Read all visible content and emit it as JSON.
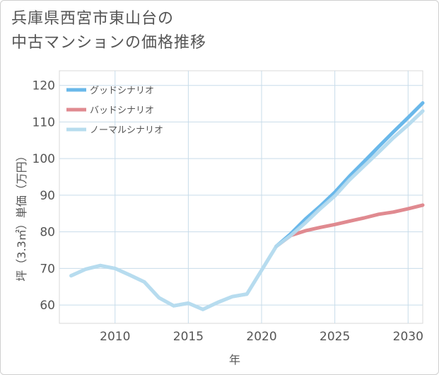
{
  "title": {
    "line1": "兵庫県西宮市東山台の",
    "line2": "中古マンションの価格推移"
  },
  "chart_data": {
    "type": "line",
    "xlabel": "年",
    "ylabel": "坪（3.3㎡）単価（万円）",
    "xlim": [
      2006.2,
      2031
    ],
    "ylim": [
      55,
      124
    ],
    "xticks": [
      2010,
      2015,
      2020,
      2025,
      2030
    ],
    "yticks": [
      60,
      70,
      80,
      90,
      100,
      110,
      120
    ],
    "grid": true,
    "legend_position": "top-left",
    "series": [
      {
        "name": "グッドシナリオ",
        "color": "#6ab8ea",
        "x": [
          2021,
          2022,
          2023,
          2024,
          2025,
          2026,
          2027,
          2028,
          2029,
          2030,
          2031
        ],
        "y": [
          76,
          79.5,
          83.5,
          87,
          90.8,
          95.2,
          99.2,
          103.3,
          107.3,
          111.2,
          115.2
        ]
      },
      {
        "name": "バッドシナリオ",
        "color": "#e08a90",
        "x": [
          2021,
          2022,
          2023,
          2024,
          2025,
          2026,
          2027,
          2028,
          2029,
          2030,
          2031
        ],
        "y": [
          76,
          79,
          80.3,
          81.2,
          82,
          82.9,
          83.8,
          84.8,
          85.4,
          86.3,
          87.3
        ]
      },
      {
        "name": "ノーマルシナリオ",
        "color": "#b7dcee",
        "x": [
          2007,
          2008,
          2009,
          2010,
          2011,
          2012,
          2013,
          2014,
          2015,
          2016,
          2017,
          2018,
          2019,
          2020,
          2021,
          2022,
          2023,
          2024,
          2025,
          2026,
          2027,
          2028,
          2029,
          2030,
          2031
        ],
        "y": [
          68,
          69.8,
          70.8,
          70,
          68.2,
          66.3,
          62,
          59.8,
          60.5,
          58.8,
          60.7,
          62.3,
          63,
          69.5,
          76,
          79,
          82.5,
          86.3,
          89.8,
          94.2,
          98,
          101.8,
          105.7,
          109.2,
          113.0
        ]
      }
    ]
  }
}
